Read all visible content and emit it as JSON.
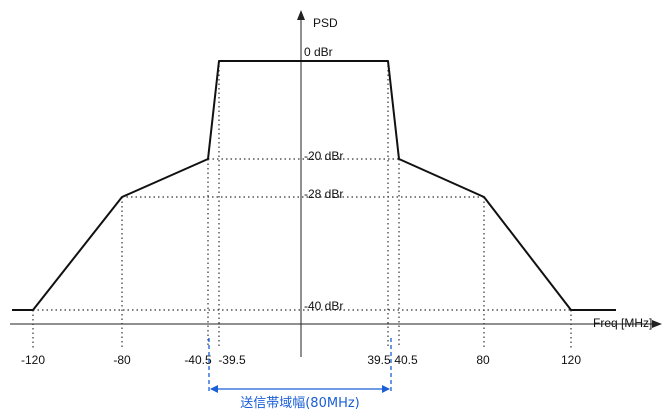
{
  "chart_data": {
    "type": "line",
    "ylabel": "PSD",
    "xlabel": "Freq [MHz]",
    "x_ticks": [
      "-120",
      "-80",
      "-40.5",
      "-39.5",
      "39.5",
      "40.5",
      "80",
      "120"
    ],
    "y_levels": [
      "0 dBr",
      "-20 dBr",
      "-28 dBr",
      "-40 dBr"
    ],
    "series": [
      {
        "x": [
          -132,
          -120,
          -80,
          -40.5,
          -39.5,
          39.5,
          40.5,
          80,
          120,
          132
        ],
        "y": [
          -40,
          -40,
          -28,
          -20,
          0,
          0,
          -20,
          -28,
          -40,
          -40
        ]
      }
    ],
    "colors": {
      "mask": "#111111",
      "guides": "#222222",
      "bandwidth": "#1a5fd6"
    },
    "bandwidth": {
      "label": "送信帯域幅(80MHz)",
      "from": -40.5,
      "to": 40.5
    }
  }
}
